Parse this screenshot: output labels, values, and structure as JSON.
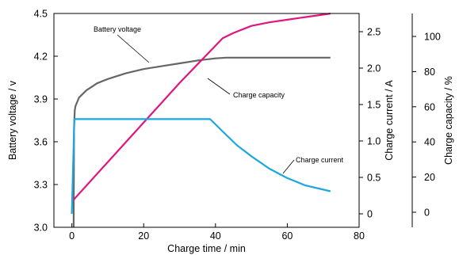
{
  "chart_data": {
    "type": "line",
    "x_axis": {
      "label": "Charge time / min",
      "range": [
        -5,
        80
      ],
      "ticks": [
        0,
        20,
        40,
        60,
        80
      ]
    },
    "y_axes": {
      "voltage": {
        "label": "Battery voltage / v",
        "range": [
          3.0,
          4.5
        ],
        "ticks": [
          "3.0",
          "3.3",
          "3.6",
          "3.9",
          "4.2",
          "4.5"
        ]
      },
      "current": {
        "label": "Charge current / A",
        "range": [
          0,
          2.5
        ],
        "ticks": [
          "0",
          "0.5",
          "1.0",
          "1.5",
          "2.0",
          "2.5"
        ]
      },
      "capacity": {
        "label": "Charge capacity / %",
        "range": [
          0,
          100
        ],
        "ticks": [
          "0",
          "20",
          "40",
          "60",
          "80",
          "100"
        ]
      }
    },
    "series": [
      {
        "name": "Battery voltage",
        "axis": "voltage",
        "color": "#666666",
        "points": [
          [
            0.5,
            3.0
          ],
          [
            0.6,
            3.7
          ],
          [
            0.8,
            3.82
          ],
          [
            1.0,
            3.85
          ],
          [
            2,
            3.91
          ],
          [
            4,
            3.96
          ],
          [
            7,
            4.01
          ],
          [
            10,
            4.04
          ],
          [
            15,
            4.08
          ],
          [
            20,
            4.11
          ],
          [
            25,
            4.13
          ],
          [
            30,
            4.15
          ],
          [
            35,
            4.17
          ],
          [
            40,
            4.185
          ],
          [
            43,
            4.19
          ],
          [
            72,
            4.19
          ]
        ]
      },
      {
        "name": "Charge capacity",
        "axis": "capacity",
        "color": "#e0157f",
        "points": [
          [
            0,
            6
          ],
          [
            10,
            28.5
          ],
          [
            20,
            51
          ],
          [
            30,
            73.5
          ],
          [
            42,
            99
          ],
          [
            45,
            102
          ],
          [
            50,
            106
          ],
          [
            55,
            108
          ],
          [
            60,
            109.5
          ],
          [
            65,
            111
          ],
          [
            72,
            113
          ]
        ]
      },
      {
        "name": "Charge current",
        "axis": "current",
        "color": "#1aa7e0",
        "points": [
          [
            0,
            0
          ],
          [
            0.7,
            1.3
          ],
          [
            1.5,
            1.3
          ],
          [
            38.5,
            1.3
          ],
          [
            42,
            1.13
          ],
          [
            46,
            0.94
          ],
          [
            50,
            0.79
          ],
          [
            55,
            0.62
          ],
          [
            60,
            0.49
          ],
          [
            65,
            0.39
          ],
          [
            72,
            0.31
          ]
        ]
      }
    ],
    "annotations": {
      "voltage": "Battery voltage",
      "capacity": "Charge capacity",
      "current": "Charge current"
    },
    "legend": "annotations on curves",
    "grid": false
  }
}
